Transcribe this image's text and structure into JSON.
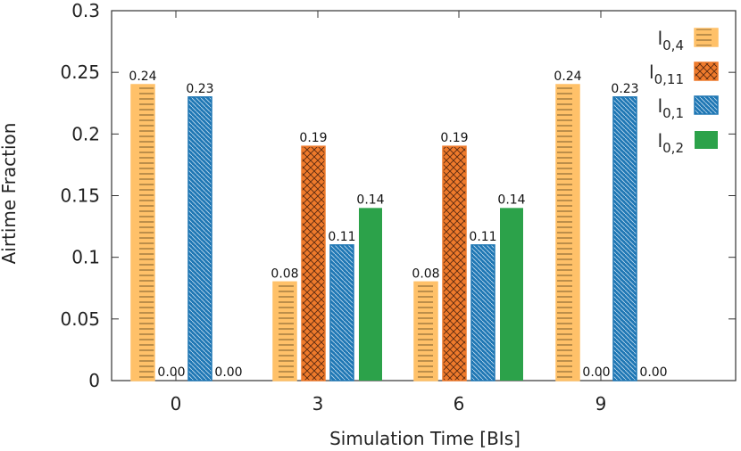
{
  "chart_data": {
    "type": "bar",
    "xlabel": "Simulation Time [BIs]",
    "ylabel": "Airtime Fraction",
    "ylim": [
      0,
      0.3
    ],
    "yticks": [
      "0",
      "0.05",
      "0.1",
      "0.15",
      "0.2",
      "0.25",
      "0.3"
    ],
    "categories": [
      "0",
      "3",
      "6",
      "9"
    ],
    "legend_position": "top-right",
    "grid": false,
    "series": [
      {
        "name": "l",
        "subscript": "0,4",
        "color": "#ffc169",
        "pattern": "hlines",
        "values": [
          0.24,
          0.08,
          0.08,
          0.24
        ],
        "labels": [
          "0.24",
          "0.08",
          "0.08",
          "0.24"
        ]
      },
      {
        "name": "l",
        "subscript": "0,11",
        "color": "#ef7a2b",
        "pattern": "crosshatch",
        "values": [
          0.0,
          0.19,
          0.19,
          0.0
        ],
        "labels": [
          "0.00",
          "0.19",
          "0.19",
          "0.00"
        ]
      },
      {
        "name": "l",
        "subscript": "0,1",
        "color": "#1f77b4",
        "pattern": "diag",
        "values": [
          0.23,
          0.11,
          0.11,
          0.23
        ],
        "labels": [
          "0.23",
          "0.11",
          "0.11",
          "0.23"
        ]
      },
      {
        "name": "l",
        "subscript": "0,2",
        "color": "#2ca24a",
        "pattern": "solid",
        "values": [
          0.0,
          0.14,
          0.14,
          0.0
        ],
        "labels": [
          "0.00",
          "0.14",
          "0.14",
          "0.00"
        ]
      }
    ]
  }
}
